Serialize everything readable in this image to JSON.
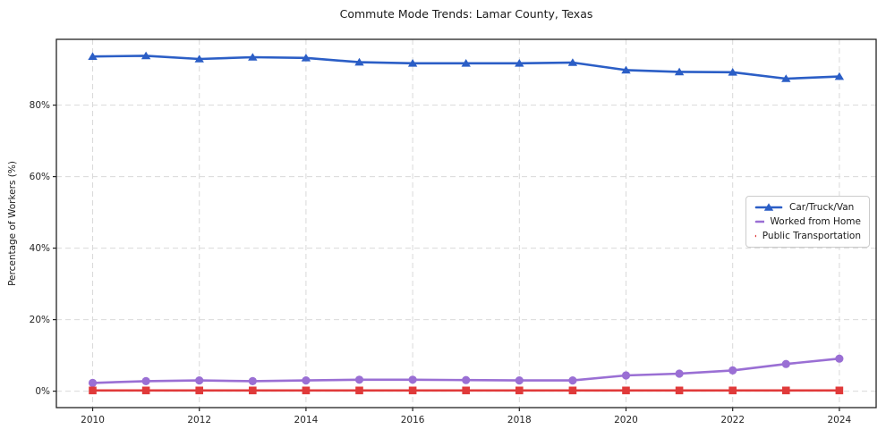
{
  "title": "Commute Mode Trends: Lamar County, Texas",
  "chart_data": {
    "type": "line",
    "title": "Commute Mode Trends: Lamar County, Texas",
    "xlabel": "",
    "ylabel": "Percentage of Workers (%)",
    "x": [
      2010,
      2011,
      2012,
      2013,
      2014,
      2015,
      2016,
      2017,
      2018,
      2019,
      2020,
      2021,
      2022,
      2023,
      2024
    ],
    "series": [
      {
        "name": "Car/Truck/Van",
        "marker": "triangle",
        "color": "#2b5ec6",
        "values": [
          93.6,
          93.8,
          92.9,
          93.4,
          93.2,
          92.0,
          91.7,
          91.7,
          91.7,
          91.9,
          89.8,
          89.3,
          89.2,
          87.4,
          88.0
        ]
      },
      {
        "name": "Worked from Home",
        "marker": "circle",
        "color": "#9a6fd4",
        "values": [
          2.3,
          2.8,
          3.0,
          2.8,
          3.0,
          3.2,
          3.2,
          3.1,
          3.0,
          3.0,
          4.4,
          4.9,
          5.8,
          7.6,
          9.1
        ]
      },
      {
        "name": "Public Transportation",
        "marker": "square",
        "color": "#e03a3a",
        "values": [
          0.2,
          0.2,
          0.2,
          0.2,
          0.2,
          0.2,
          0.2,
          0.2,
          0.2,
          0.2,
          0.2,
          0.2,
          0.2,
          0.2,
          0.2
        ]
      }
    ],
    "xticks": [
      2010,
      2012,
      2014,
      2016,
      2018,
      2020,
      2022,
      2024
    ],
    "yticks": [
      0,
      20,
      40,
      60,
      80
    ],
    "yticklabels": [
      "0%",
      "20%",
      "40%",
      "60%",
      "80%"
    ],
    "xlim": [
      2009.32,
      2024.69
    ],
    "ylim": [
      -4.6,
      98.4
    ],
    "grid": true,
    "grid_style": "dashed",
    "legend_position": "center-right",
    "axis_color": "#222222",
    "grid_color": "#d9d9d9",
    "text_color": "#1a1a1a"
  }
}
